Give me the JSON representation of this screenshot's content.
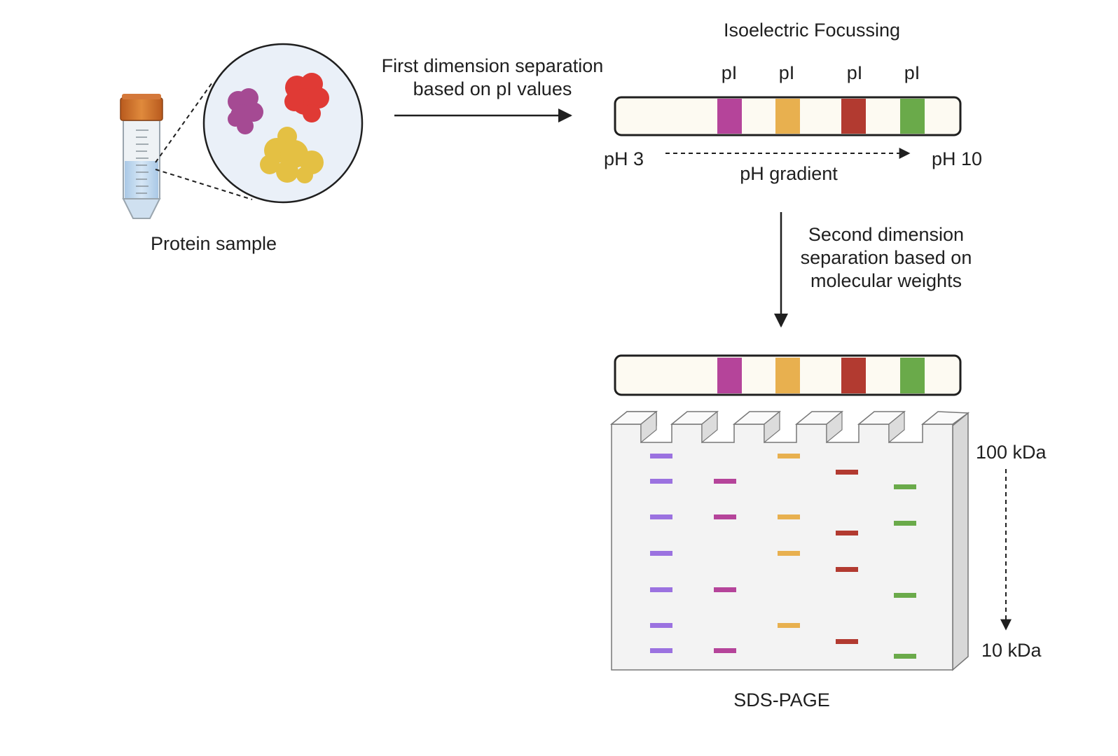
{
  "sample": {
    "label": "Protein sample"
  },
  "first_dimension": {
    "line1": "First dimension separation",
    "line2": "based on pI values"
  },
  "ief": {
    "title": "Isoelectric Focussing",
    "pi_label": "pI",
    "ph_start": "pH 3",
    "ph_end": "pH 10",
    "gradient_label": "pH gradient",
    "band_colors": [
      "#b5449a",
      "#e8b04f",
      "#b23a30",
      "#6aaa4a"
    ]
  },
  "second_dimension": {
    "line1": "Second dimension",
    "line2": "separation based on",
    "line3": "molecular weights"
  },
  "gel": {
    "title": "SDS-PAGE",
    "mw_high": "100 kDa",
    "mw_low": "10 kDa",
    "ladder_color": "#9b72e0",
    "lane_colors": [
      "#9b72e0",
      "#b5449a",
      "#e8b04f",
      "#b23a30",
      "#6aaa4a"
    ]
  }
}
